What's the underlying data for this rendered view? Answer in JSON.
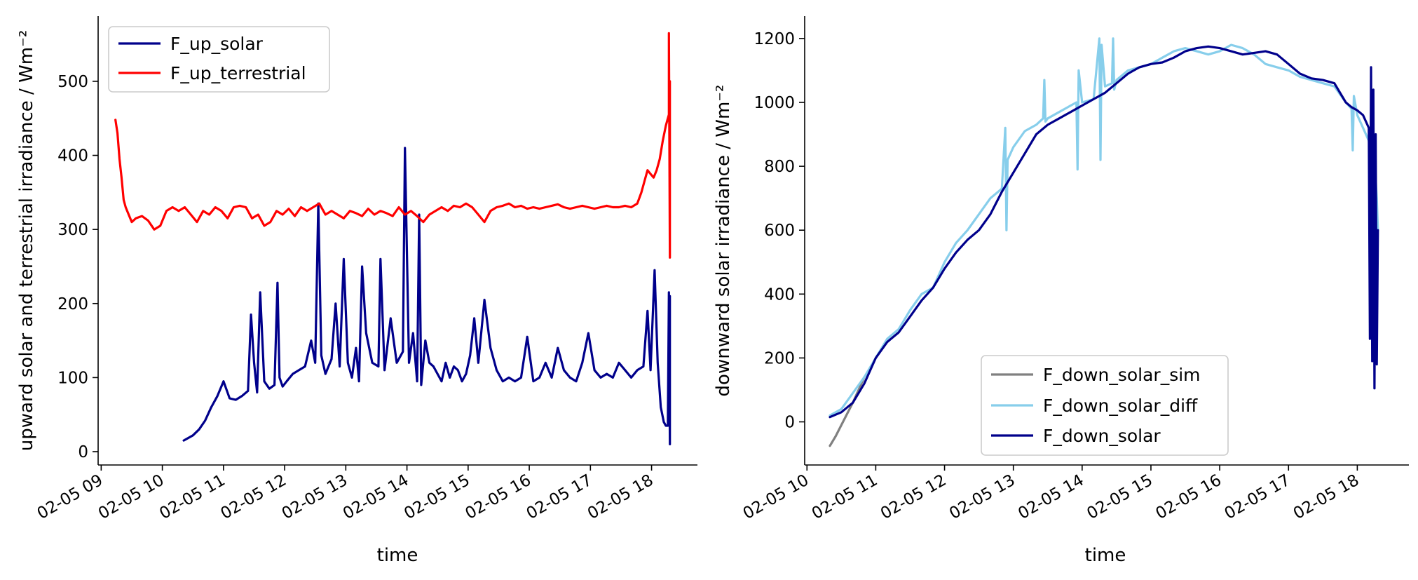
{
  "chart_data": [
    {
      "type": "line",
      "xlabel": "time",
      "ylabel": "upward solar and terrestrial irradiance / Wm⁻²",
      "x_ticks": [
        "02-05 09",
        "02-05 10",
        "02-05 11",
        "02-05 12",
        "02-05 13",
        "02-05 14",
        "02-05 15",
        "02-05 16",
        "02-05 17",
        "02-05 18"
      ],
      "y_ticks": [
        "0",
        "100",
        "200",
        "300",
        "400",
        "500"
      ],
      "xlim": [
        "2023-02-05 08:57",
        "2023-02-05 18:45"
      ],
      "ylim": [
        -18,
        588
      ],
      "legend": "top-left",
      "grid": false,
      "series": [
        {
          "name": "F_up_solar",
          "color": "#00008b",
          "x": [
            "10:21",
            "10:30",
            "10:36",
            "10:42",
            "10:48",
            "10:54",
            "11:00",
            "11:06",
            "11:12",
            "11:18",
            "11:24",
            "11:27",
            "11:30",
            "11:33",
            "11:36",
            "11:40",
            "11:45",
            "11:50",
            "11:53",
            "11:55",
            "11:58",
            "12:02",
            "12:08",
            "12:14",
            "12:20",
            "12:26",
            "12:30",
            "12:33",
            "12:36",
            "12:40",
            "12:46",
            "12:50",
            "12:54",
            "12:58",
            "13:02",
            "13:06",
            "13:10",
            "13:13",
            "13:16",
            "13:20",
            "13:26",
            "13:32",
            "13:34",
            "13:38",
            "13:44",
            "13:50",
            "13:56",
            "13:58",
            "14:02",
            "14:06",
            "14:10",
            "14:12",
            "14:14",
            "14:18",
            "14:22",
            "14:26",
            "14:30",
            "14:34",
            "14:38",
            "14:42",
            "14:46",
            "14:50",
            "14:54",
            "14:58",
            "15:02",
            "15:06",
            "15:10",
            "15:16",
            "15:22",
            "15:28",
            "15:34",
            "15:40",
            "15:46",
            "15:52",
            "15:58",
            "16:04",
            "16:10",
            "16:16",
            "16:22",
            "16:28",
            "16:34",
            "16:40",
            "16:46",
            "16:52",
            "16:58",
            "17:04",
            "17:10",
            "17:16",
            "17:22",
            "17:28",
            "17:34",
            "17:40",
            "17:46",
            "17:52",
            "17:56",
            "17:59",
            "18:03",
            "18:06",
            "18:09",
            "18:12",
            "18:14",
            "18:16",
            "18:17",
            "18:18",
            "18:18",
            "18:18"
          ],
          "y": [
            15,
            22,
            30,
            42,
            60,
            75,
            95,
            72,
            70,
            75,
            82,
            185,
            120,
            80,
            215,
            95,
            85,
            90,
            228,
            100,
            88,
            95,
            105,
            110,
            115,
            150,
            120,
            335,
            130,
            105,
            125,
            200,
            115,
            260,
            120,
            100,
            140,
            95,
            250,
            160,
            120,
            115,
            260,
            110,
            180,
            120,
            135,
            410,
            120,
            160,
            95,
            320,
            90,
            150,
            120,
            115,
            105,
            95,
            120,
            100,
            115,
            110,
            95,
            105,
            130,
            180,
            120,
            205,
            140,
            110,
            95,
            100,
            95,
            100,
            155,
            95,
            100,
            120,
            100,
            140,
            110,
            100,
            95,
            120,
            160,
            110,
            100,
            105,
            100,
            120,
            110,
            100,
            110,
            115,
            190,
            110,
            245,
            120,
            60,
            40,
            35,
            35,
            215,
            10,
            120,
            210
          ]
        },
        {
          "name": "F_up_terrestrial",
          "color": "#ff0000",
          "x": [
            "09:14",
            "09:16",
            "09:18",
            "09:20",
            "09:22",
            "09:24",
            "09:27",
            "09:30",
            "09:34",
            "09:40",
            "09:46",
            "09:52",
            "09:58",
            "10:04",
            "10:10",
            "10:16",
            "10:22",
            "10:28",
            "10:34",
            "10:40",
            "10:46",
            "10:52",
            "10:58",
            "11:04",
            "11:10",
            "11:16",
            "11:22",
            "11:28",
            "11:34",
            "11:40",
            "11:46",
            "11:52",
            "11:58",
            "12:04",
            "12:10",
            "12:16",
            "12:22",
            "12:28",
            "12:34",
            "12:40",
            "12:46",
            "12:52",
            "12:58",
            "13:04",
            "13:10",
            "13:16",
            "13:22",
            "13:28",
            "13:34",
            "13:40",
            "13:46",
            "13:52",
            "13:58",
            "14:04",
            "14:10",
            "14:16",
            "14:22",
            "14:28",
            "14:34",
            "14:40",
            "14:46",
            "14:52",
            "14:58",
            "15:04",
            "15:10",
            "15:16",
            "15:22",
            "15:28",
            "15:34",
            "15:40",
            "15:46",
            "15:52",
            "15:58",
            "16:04",
            "16:10",
            "16:16",
            "16:22",
            "16:28",
            "16:34",
            "16:40",
            "16:46",
            "16:52",
            "16:58",
            "17:04",
            "17:10",
            "17:16",
            "17:22",
            "17:28",
            "17:34",
            "17:40",
            "17:46",
            "17:50",
            "17:53",
            "17:56",
            "17:59",
            "18:02",
            "18:05",
            "18:08",
            "18:11",
            "18:14",
            "18:16",
            "18:17",
            "18:17",
            "18:18",
            "18:18"
          ],
          "y": [
            448,
            430,
            395,
            370,
            340,
            330,
            320,
            310,
            315,
            318,
            312,
            300,
            305,
            325,
            330,
            325,
            330,
            320,
            310,
            325,
            320,
            330,
            325,
            315,
            330,
            332,
            330,
            315,
            320,
            305,
            310,
            325,
            320,
            328,
            318,
            330,
            325,
            330,
            335,
            320,
            325,
            320,
            315,
            325,
            322,
            318,
            328,
            320,
            325,
            322,
            318,
            330,
            320,
            325,
            318,
            310,
            320,
            325,
            330,
            325,
            332,
            330,
            335,
            330,
            320,
            310,
            325,
            330,
            332,
            335,
            330,
            332,
            328,
            330,
            328,
            330,
            332,
            334,
            330,
            328,
            330,
            332,
            330,
            328,
            330,
            332,
            330,
            330,
            332,
            330,
            335,
            350,
            365,
            380,
            375,
            370,
            380,
            395,
            420,
            440,
            450,
            455,
            565,
            262,
            500
          ]
        }
      ]
    },
    {
      "type": "line",
      "xlabel": "time",
      "ylabel": "downward solar irradiance / Wm⁻²",
      "x_ticks": [
        "02-05 10",
        "02-05 11",
        "02-05 12",
        "02-05 13",
        "02-05 14",
        "02-05 15",
        "02-05 16",
        "02-05 17",
        "02-05 18"
      ],
      "y_ticks": [
        "0",
        "200",
        "400",
        "600",
        "800",
        "1000",
        "1200"
      ],
      "xlim": [
        "2023-02-05 09:58",
        "2023-02-05 18:45"
      ],
      "ylim": [
        -135,
        1270
      ],
      "legend": "lower-center",
      "grid": false,
      "series": [
        {
          "name": "F_down_solar_sim",
          "color": "#808080",
          "x": [
            "10:20",
            "10:25",
            "10:30",
            "10:35",
            "10:40",
            "10:45",
            "10:50"
          ],
          "y": [
            -75,
            -45,
            -10,
            25,
            60,
            100,
            140
          ]
        },
        {
          "name": "F_down_solar_diff",
          "color": "#87ceeb",
          "x": [
            "10:20",
            "10:30",
            "10:40",
            "10:50",
            "11:00",
            "11:10",
            "11:20",
            "11:30",
            "11:40",
            "11:50",
            "12:00",
            "12:10",
            "12:20",
            "12:30",
            "12:40",
            "12:50",
            "12:53",
            "12:54",
            "12:55",
            "13:00",
            "13:10",
            "13:20",
            "13:26",
            "13:27",
            "13:28",
            "13:30",
            "13:40",
            "13:50",
            "13:55",
            "13:56",
            "13:57",
            "14:00",
            "14:10",
            "14:15",
            "14:16",
            "14:17",
            "14:20",
            "14:26",
            "14:27",
            "14:28",
            "14:30",
            "14:40",
            "14:50",
            "15:00",
            "15:10",
            "15:20",
            "15:30",
            "15:40",
            "15:50",
            "16:00",
            "16:10",
            "16:20",
            "16:30",
            "16:40",
            "16:50",
            "17:00",
            "17:10",
            "17:20",
            "17:30",
            "17:40",
            "17:50",
            "17:55",
            "17:56",
            "17:57",
            "18:00",
            "18:05",
            "18:10",
            "18:12",
            "18:14",
            "18:16",
            "18:17",
            "18:18"
          ],
          "y": [
            20,
            40,
            90,
            140,
            200,
            260,
            290,
            350,
            400,
            420,
            500,
            560,
            600,
            650,
            700,
            730,
            920,
            600,
            820,
            860,
            910,
            930,
            950,
            1070,
            940,
            950,
            970,
            990,
            1000,
            790,
            1100,
            1000,
            1010,
            1200,
            820,
            1180,
            1050,
            1060,
            1200,
            1040,
            1070,
            1100,
            1110,
            1120,
            1140,
            1160,
            1170,
            1160,
            1150,
            1160,
            1180,
            1170,
            1150,
            1120,
            1110,
            1100,
            1080,
            1070,
            1060,
            1050,
            1000,
            980,
            850,
            1020,
            960,
            920,
            880,
            820,
            780,
            760,
            700,
            600
          ]
        },
        {
          "name": "F_down_solar",
          "color": "#00008b",
          "x": [
            "10:20",
            "10:30",
            "10:40",
            "10:50",
            "11:00",
            "11:10",
            "11:20",
            "11:30",
            "11:40",
            "11:50",
            "12:00",
            "12:10",
            "12:20",
            "12:30",
            "12:40",
            "12:50",
            "13:00",
            "13:10",
            "13:20",
            "13:30",
            "13:40",
            "13:50",
            "14:00",
            "14:10",
            "14:20",
            "14:30",
            "14:40",
            "14:50",
            "15:00",
            "15:10",
            "15:20",
            "15:30",
            "15:40",
            "15:50",
            "16:00",
            "16:10",
            "16:20",
            "16:30",
            "16:40",
            "16:50",
            "17:00",
            "17:10",
            "17:20",
            "17:30",
            "17:40",
            "17:50",
            "17:55",
            "18:00",
            "18:05",
            "18:10",
            "18:11",
            "18:12",
            "18:13",
            "18:14",
            "18:15",
            "18:16",
            "18:17",
            "18:18"
          ],
          "y": [
            15,
            30,
            60,
            120,
            200,
            250,
            280,
            330,
            380,
            420,
            480,
            530,
            570,
            600,
            650,
            720,
            780,
            840,
            900,
            930,
            950,
            970,
            990,
            1010,
            1030,
            1060,
            1090,
            1110,
            1120,
            1125,
            1140,
            1160,
            1170,
            1175,
            1170,
            1160,
            1150,
            1155,
            1160,
            1150,
            1120,
            1090,
            1075,
            1070,
            1060,
            1000,
            985,
            975,
            960,
            920,
            260,
            1110,
            190,
            1040,
            105,
            900,
            180,
            600
          ]
        }
      ]
    }
  ]
}
